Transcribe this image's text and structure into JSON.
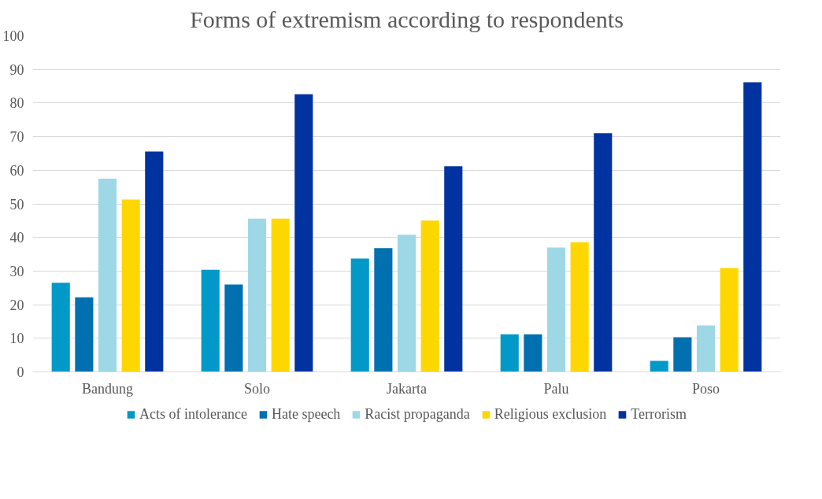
{
  "chart_data": {
    "type": "bar",
    "title": "Forms of extremism according to respondents",
    "categories": [
      "Bandung",
      "Solo",
      "Jakarta",
      "Palu",
      "Poso"
    ],
    "series": [
      {
        "name": "Acts of intolerance",
        "color": "#0099c8",
        "values": [
          26.5,
          30.4,
          33.7,
          11.2,
          3.3
        ]
      },
      {
        "name": "Hate speech",
        "color": "#0070b0",
        "values": [
          22.2,
          26,
          36.8,
          11.2,
          10.3
        ]
      },
      {
        "name": "Racist propaganda",
        "color": "#9ed8e6",
        "values": [
          57.5,
          45.6,
          40.8,
          37,
          13.8
        ]
      },
      {
        "name": "Religious exclusion",
        "color": "#ffd700",
        "values": [
          51.3,
          45.6,
          45,
          38.6,
          30.9
        ]
      },
      {
        "name": "Terrorism",
        "color": "#0033a0",
        "values": [
          65.6,
          82.6,
          61.2,
          71,
          86.2
        ]
      }
    ],
    "ylim": [
      0,
      100
    ],
    "yticks": [
      0,
      10,
      20,
      30,
      40,
      50,
      60,
      70,
      80,
      90,
      100
    ],
    "grid": "y",
    "legend": "bottom"
  }
}
